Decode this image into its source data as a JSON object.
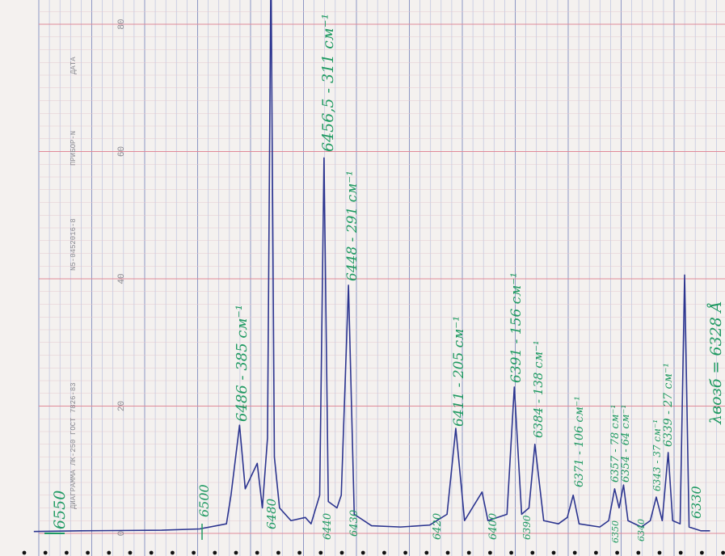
{
  "chart_data": {
    "type": "line",
    "header_labels": [
      "ДИАГРАММА ЛК-250 ГОСТ 7826-83",
      "N5-0452016-8",
      "ПРИБОР-N",
      "ДАТА"
    ],
    "annotations": [
      "6550",
      "6500",
      "6486 - 385 см⁻¹",
      "6480",
      "6456,5 - 311 см⁻¹",
      "6448 - 291 см⁻¹",
      "6440",
      "6430",
      "6420",
      "6411 - 205 см⁻¹",
      "6400",
      "6391 - 156 см⁻¹",
      "6390",
      "6384 - 138 см⁻¹",
      "6371 - 106 см⁻¹",
      "6357 - 78 см⁻¹",
      "6354 - 64 см⁻¹",
      "6350",
      "6343 - 37 см⁻¹",
      "6339 - 27 см⁻¹",
      "6340",
      "6330",
      "λвозб = 6328 Å"
    ],
    "x_scale": "reciprocal",
    "xlim": [
      6560,
      6325
    ],
    "ylim": [
      0,
      80
    ],
    "yticks": [
      0,
      20,
      40,
      60,
      80
    ],
    "grid": true,
    "series": [
      {
        "color": "#2c3590",
        "x": [
          6559,
          6542.2,
          6513.4,
          6500,
          6490.6,
          6489,
          6486,
          6484,
          6479.8,
          6478,
          6476.2,
          6475,
          6473.8,
          6472,
          6468,
          6463,
          6461,
          6458,
          6456.5,
          6455,
          6452,
          6450.5,
          6448,
          6446,
          6440,
          6430,
          6420,
          6414,
          6411,
          6408,
          6402,
          6400,
          6393.5,
          6391,
          6388.5,
          6386,
          6384,
          6381,
          6376,
          6373,
          6371,
          6369,
          6362,
          6359,
          6357,
          6355.5,
          6354,
          6352.5,
          6348,
          6345,
          6343,
          6341,
          6339,
          6337.5,
          6335,
          6333.5,
          6332,
          6328,
          6325
        ],
        "values": [
          0.3,
          0.4,
          0.5,
          0.7,
          1.5,
          6,
          17,
          7,
          11,
          4,
          15,
          90,
          12,
          4,
          2,
          2.5,
          1.5,
          6,
          59,
          5,
          4,
          6,
          39,
          3,
          1.2,
          1,
          1.3,
          3,
          16.5,
          2,
          6.5,
          2,
          3,
          23,
          3,
          4,
          14,
          2,
          1.5,
          2.5,
          6,
          1.5,
          1,
          2,
          7,
          4,
          7.6,
          2,
          1,
          2,
          5.7,
          2,
          12.7,
          2,
          1.5,
          40.6,
          1,
          0.4,
          0.4
        ]
      }
    ]
  }
}
